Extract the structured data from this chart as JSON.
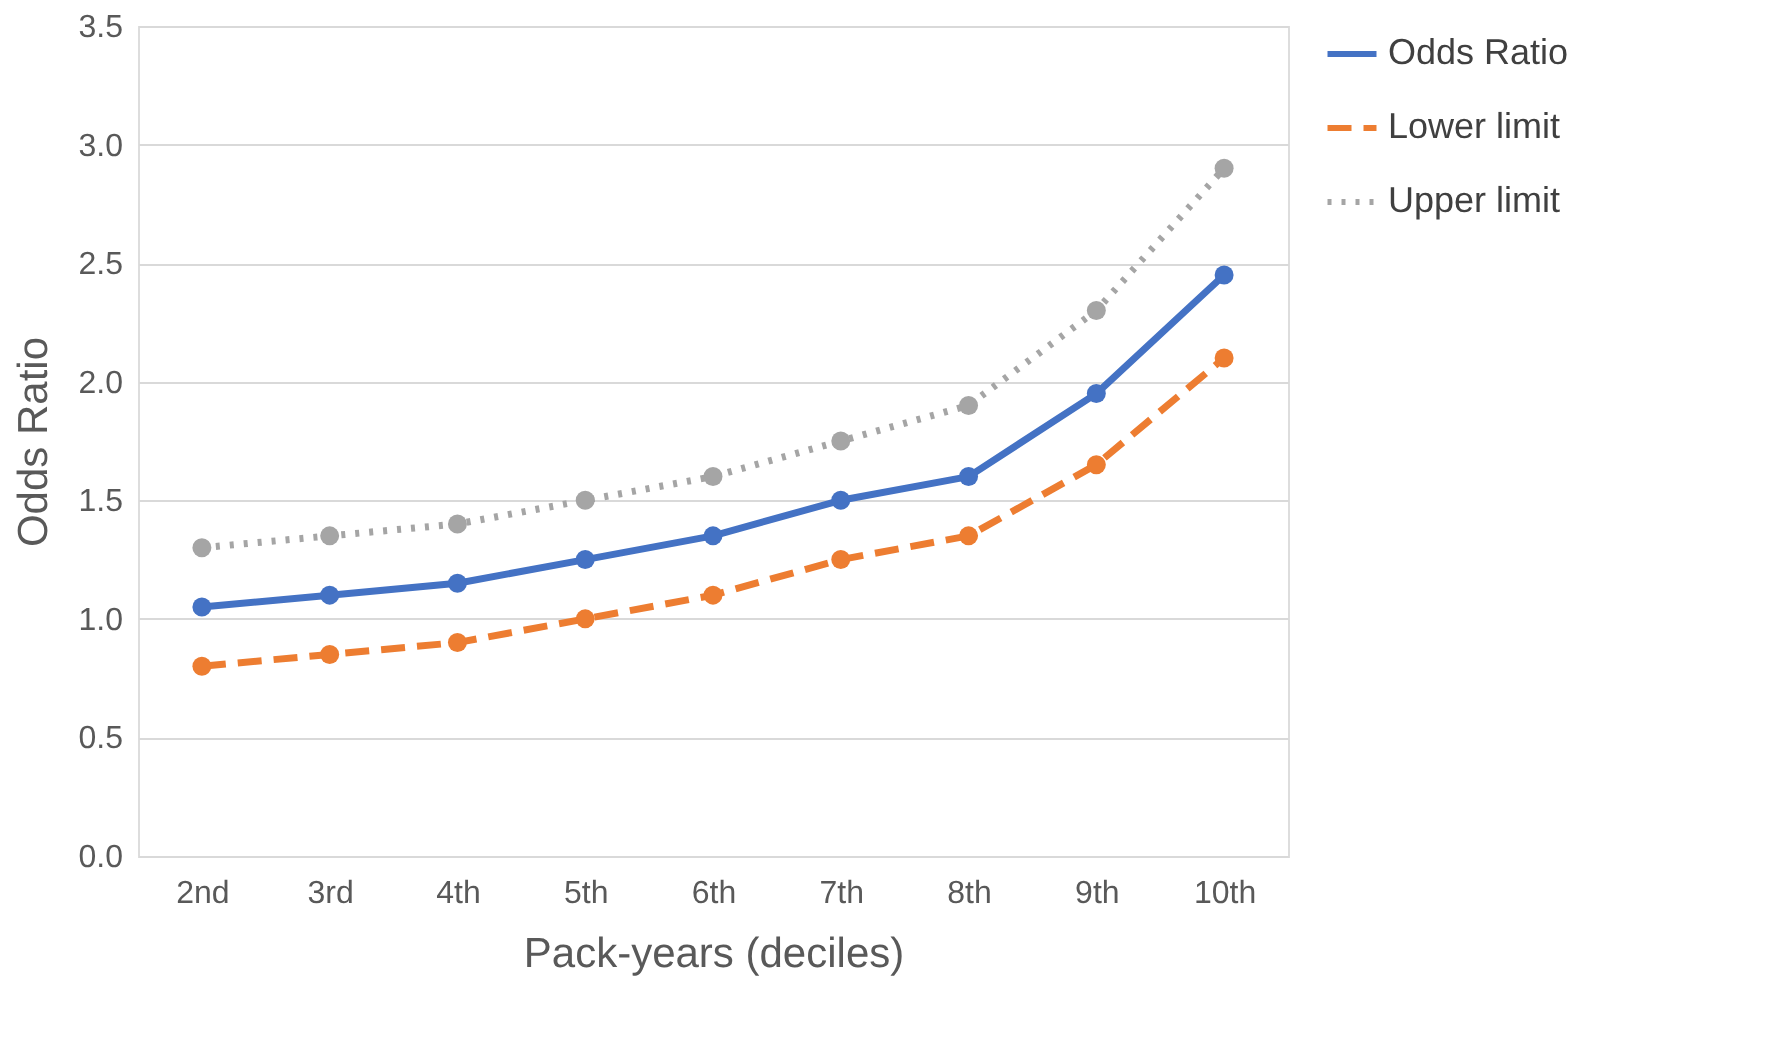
{
  "chart_data": {
    "type": "line",
    "xlabel": "Pack-years (deciles)",
    "ylabel": "Odds Ratio",
    "categories": [
      "2nd",
      "3rd",
      "4th",
      "5th",
      "6th",
      "7th",
      "8th",
      "9th",
      "10th"
    ],
    "series": [
      {
        "name": "Odds Ratio",
        "color": "#4472c4",
        "line_style": "solid",
        "values": [
          1.05,
          1.1,
          1.15,
          1.25,
          1.35,
          1.5,
          1.6,
          1.95,
          2.45
        ]
      },
      {
        "name": "Lower limit",
        "color": "#ed7d31",
        "line_style": "dashed",
        "values": [
          0.8,
          0.85,
          0.9,
          1.0,
          1.1,
          1.25,
          1.35,
          1.65,
          2.1
        ]
      },
      {
        "name": "Upper limit",
        "color": "#a5a5a5",
        "line_style": "dotted",
        "values": [
          1.3,
          1.35,
          1.4,
          1.5,
          1.6,
          1.75,
          1.9,
          2.3,
          2.9
        ]
      }
    ],
    "ylim": [
      0,
      3.5
    ],
    "yticks": [
      {
        "value": 0,
        "label": "0.0"
      },
      {
        "value": 0.5,
        "label": "0.5"
      },
      {
        "value": 1,
        "label": "1.0"
      },
      {
        "value": 1.5,
        "label": "1.5"
      },
      {
        "value": 2,
        "label": "2.0"
      },
      {
        "value": 2.5,
        "label": "2.5"
      },
      {
        "value": 3,
        "label": "3.0"
      },
      {
        "value": 3.5,
        "label": "3.5"
      }
    ],
    "grid": "y",
    "legend": "right",
    "marker": "circle"
  }
}
